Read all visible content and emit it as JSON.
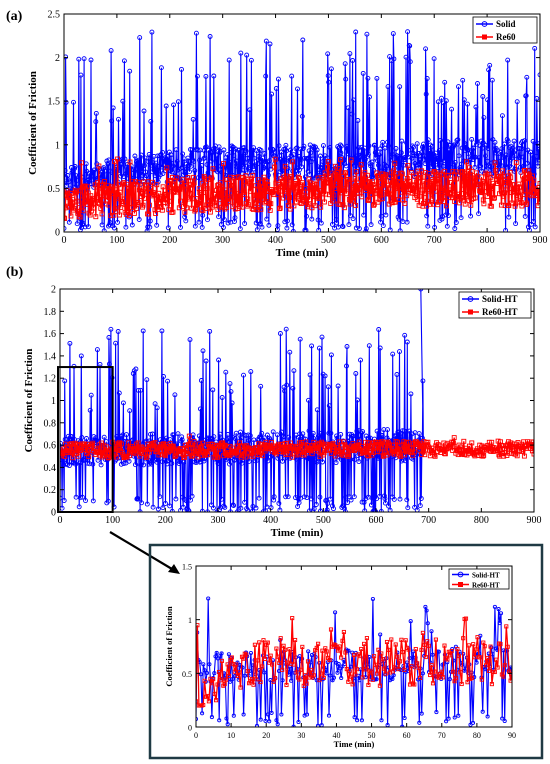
{
  "panels": {
    "a": {
      "label": "(a)"
    },
    "b": {
      "label": "(b)"
    }
  },
  "colors": {
    "solid": "#0000ff",
    "re60": "#ff0000",
    "frame": "#1f3a44"
  },
  "chart_data": [
    {
      "id": "a",
      "type": "line",
      "xlabel": "Time (min)",
      "ylabel": "Coefficient of Friction",
      "xlim": [
        0,
        900
      ],
      "ylim": [
        0,
        2.5
      ],
      "xticks": [
        0,
        100,
        200,
        300,
        400,
        500,
        600,
        700,
        800,
        900
      ],
      "yticks": [
        0,
        0.5,
        1,
        1.5,
        2,
        2.5
      ],
      "ytick_labels": [
        "0",
        "0.5",
        "1",
        "1.5",
        "2",
        "2.5"
      ],
      "legend_position": "top-right",
      "series": [
        {
          "name": "Solid",
          "marker": "circle",
          "color": "#0000ff",
          "x_range": [
            0,
            900
          ],
          "mean_trend": [
            [
              0,
              0.6
            ],
            [
              200,
              0.75
            ],
            [
              300,
              0.8
            ],
            [
              500,
              0.8
            ],
            [
              700,
              0.85
            ],
            [
              900,
              0.85
            ]
          ],
          "spread": [
            0.0,
            2.3
          ]
        },
        {
          "name": "Re60",
          "marker": "square",
          "color": "#ff0000",
          "x_range": [
            0,
            900
          ],
          "mean_trend": [
            [
              0,
              0.35
            ],
            [
              200,
              0.42
            ],
            [
              400,
              0.45
            ],
            [
              600,
              0.5
            ],
            [
              900,
              0.5
            ]
          ],
          "spread": [
            0.1,
            0.85
          ]
        }
      ]
    },
    {
      "id": "b",
      "type": "line",
      "xlabel": "Time (min)",
      "ylabel": "Coefficient of Friction",
      "xlim": [
        0,
        900
      ],
      "ylim": [
        0,
        2
      ],
      "xticks": [
        0,
        100,
        200,
        300,
        400,
        500,
        600,
        700,
        800,
        900
      ],
      "yticks": [
        0,
        0.2,
        0.4,
        0.6,
        0.8,
        1,
        1.2,
        1.4,
        1.6,
        1.8,
        2
      ],
      "ytick_labels": [
        "0",
        "0.2",
        "0.4",
        "0.6",
        "0.8",
        "1",
        "1.2",
        "1.4",
        "1.6",
        "1.8",
        "2"
      ],
      "legend_position": "top-right",
      "zoom_box": {
        "x": [
          0,
          100
        ],
        "y": [
          0,
          1.3
        ]
      },
      "series": [
        {
          "name": "Solid-HT",
          "marker": "circle",
          "color": "#0000ff",
          "x_range": [
            0,
            690
          ],
          "mean_trend": [
            [
              0,
              0.55
            ],
            [
              690,
              0.6
            ]
          ],
          "spread": [
            0.0,
            1.65
          ],
          "spike_end": [
            685,
            2.0
          ]
        },
        {
          "name": "Re60-HT",
          "marker": "square",
          "color": "#ff0000",
          "x_range": [
            0,
            900
          ],
          "mean_trend": [
            [
              0,
              0.55
            ],
            [
              900,
              0.57
            ]
          ],
          "spread": [
            0.45,
            0.7
          ]
        }
      ]
    },
    {
      "id": "inset",
      "type": "line",
      "xlabel": "Time (min)",
      "ylabel": "Coefficient of Friction",
      "xlim": [
        0,
        90
      ],
      "ylim": [
        0,
        1.5
      ],
      "xticks": [
        0,
        10,
        20,
        30,
        40,
        50,
        60,
        70,
        80,
        90
      ],
      "yticks": [
        0,
        0.5,
        1,
        1.5
      ],
      "ytick_labels": [
        "0",
        "0.5",
        "1",
        "1.5"
      ],
      "legend_position": "top-right",
      "series": [
        {
          "name": "Solid-HT",
          "marker": "circle",
          "color": "#0000ff",
          "x_range": [
            0,
            90
          ],
          "mean_trend": [
            [
              0,
              0.55
            ],
            [
              90,
              0.6
            ]
          ],
          "spread": [
            0.0,
            1.2
          ]
        },
        {
          "name": "Re60-HT",
          "marker": "square",
          "color": "#ff0000",
          "x_range": [
            0,
            90
          ],
          "mean_trend": [
            [
              0,
              0.25
            ],
            [
              5,
              0.45
            ],
            [
              15,
              0.6
            ],
            [
              90,
              0.62
            ]
          ],
          "spread": [
            0.2,
            1.02
          ]
        }
      ]
    }
  ]
}
